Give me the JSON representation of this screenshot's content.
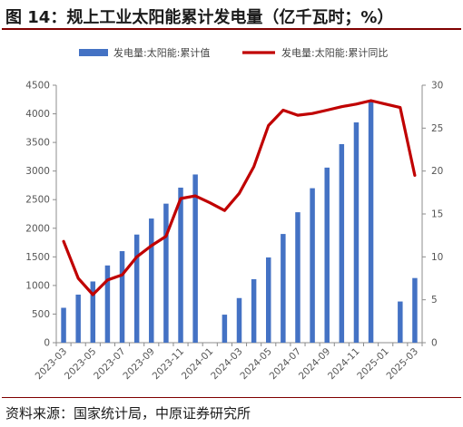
{
  "figure": {
    "title": "图 14：规上工业太阳能累计发电量（亿千瓦时；%）",
    "source": "资料来源：国家统计局，中原证券研究所"
  },
  "chart_data": {
    "type": "bar",
    "categories": [
      "2023-03",
      "2023-04",
      "2023-05",
      "2023-06",
      "2023-07",
      "2023-08",
      "2023-09",
      "2023-10",
      "2023-11",
      "2023-12",
      "2024-01",
      "2024-02",
      "2024-03",
      "2024-04",
      "2024-05",
      "2024-06",
      "2024-07",
      "2024-08",
      "2024-09",
      "2024-10",
      "2024-11",
      "2024-12",
      "2025-01",
      "2025-02",
      "2025-03"
    ],
    "x_tick_labels": [
      "2023-03",
      "2023-05",
      "2023-07",
      "2023-09",
      "2023-11",
      "2024-01",
      "2024-03",
      "2024-05",
      "2024-07",
      "2024-09",
      "2024-11",
      "2025-01",
      "2025-03"
    ],
    "series": [
      {
        "name": "发电量:太阳能:累计值",
        "type": "bar",
        "axis": "left",
        "color": "#4472c4",
        "values": [
          610,
          840,
          1070,
          1350,
          1600,
          1890,
          2170,
          2430,
          2710,
          2940,
          null,
          490,
          780,
          1110,
          1490,
          1900,
          2280,
          2700,
          3060,
          3470,
          3850,
          4220,
          null,
          720,
          1130
        ]
      },
      {
        "name": "发电量:太阳能:累计同比",
        "type": "line",
        "axis": "right",
        "color": "#c00000",
        "values": [
          11.8,
          7.5,
          5.6,
          7.3,
          7.9,
          10.0,
          11.3,
          12.4,
          16.8,
          17.1,
          16.3,
          15.4,
          17.4,
          20.5,
          25.3,
          27.1,
          26.5,
          26.7,
          27.1,
          27.5,
          27.8,
          28.2,
          27.8,
          27.4,
          19.5
        ]
      }
    ],
    "y_left": {
      "min": 0,
      "max": 4500,
      "step": 500,
      "ticks": [
        "0",
        "500",
        "1000",
        "1500",
        "2000",
        "2500",
        "3000",
        "3500",
        "4000",
        "4500"
      ]
    },
    "y_right": {
      "min": 0,
      "max": 30,
      "step": 5,
      "ticks": [
        "0",
        "5",
        "10",
        "15",
        "20",
        "25",
        "30"
      ]
    },
    "legend_position": "top",
    "grid": false
  }
}
